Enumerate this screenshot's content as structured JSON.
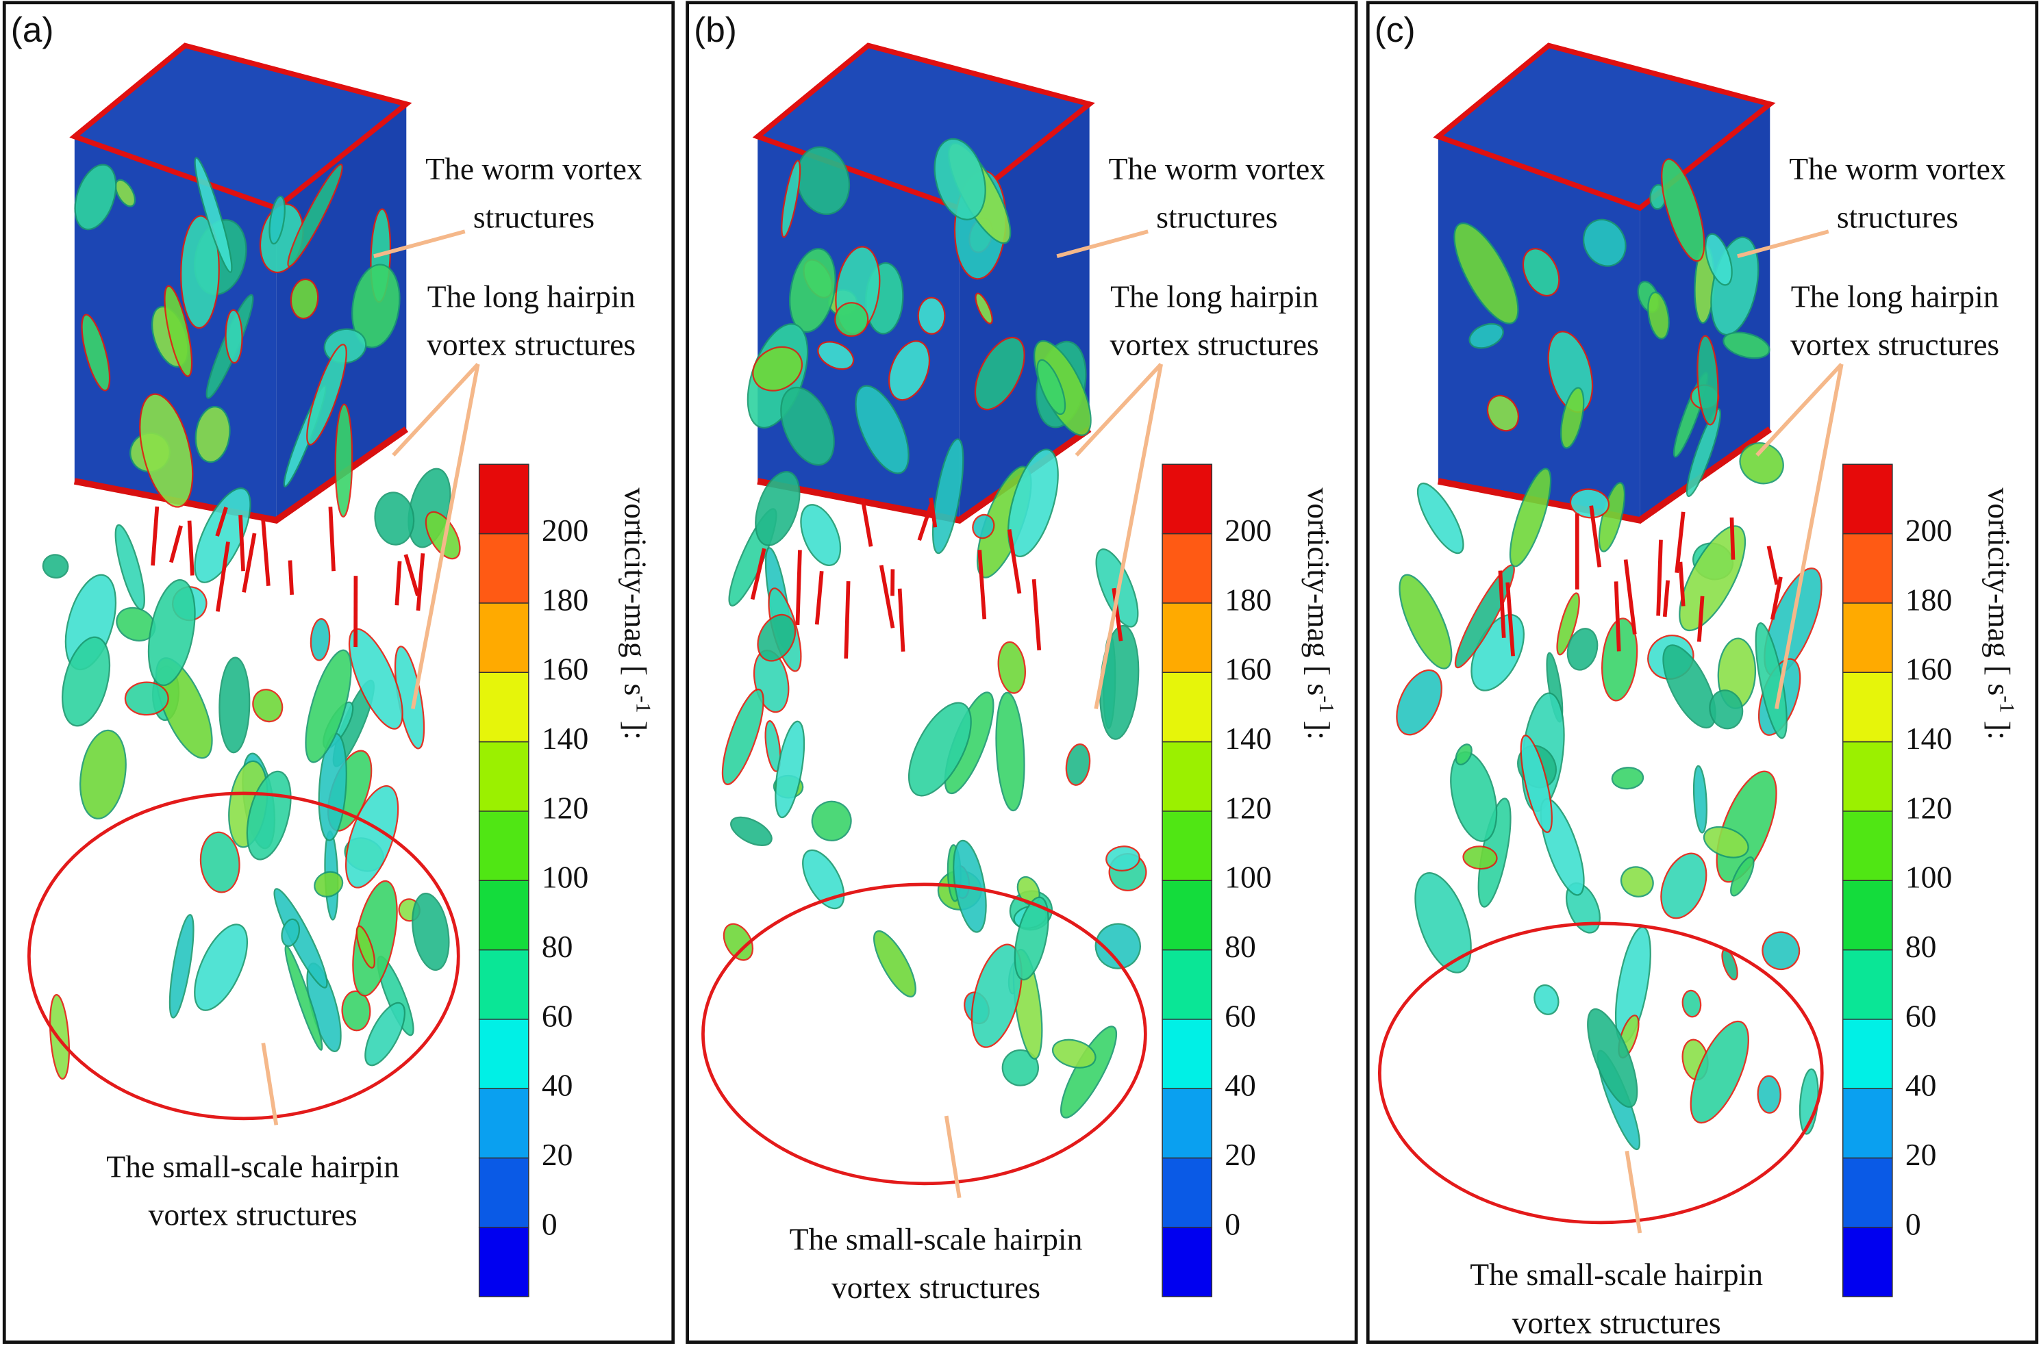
{
  "figure": {
    "colorbar": {
      "ticks": [
        0,
        20,
        40,
        60,
        80,
        100,
        120,
        140,
        160,
        180,
        200
      ],
      "colors": [
        "#0000f0",
        "#0a5ae6",
        "#0aa0f0",
        "#00f0e6",
        "#0ae696",
        "#14dc3c",
        "#50e614",
        "#9bf000",
        "#e6f50a",
        "#ffaa00",
        "#ff5a14",
        "#e60a0a"
      ],
      "label": {
        "main": "vorticity-mag [ s",
        "superscript": "-1",
        "end": " ]:"
      }
    },
    "panels": [
      {
        "label": "(a)",
        "worm": [
          "The worm vortex",
          "structures"
        ],
        "long": [
          "The long hairpin",
          "vortex structures"
        ],
        "small": [
          "The small-scale hairpin",
          "vortex structures"
        ]
      },
      {
        "label": "(b)",
        "worm": [
          "The worm vortex",
          "structures"
        ],
        "long": [
          "The long hairpin",
          "vortex structures"
        ],
        "small": [
          "The small-scale hairpin",
          "vortex structures"
        ]
      },
      {
        "label": "(c)",
        "worm": [
          "The worm vortex",
          "structures"
        ],
        "long": [
          "The long hairpin",
          "vortex structures"
        ],
        "small": [
          "The small-scale hairpin",
          "vortex structures"
        ]
      }
    ]
  }
}
